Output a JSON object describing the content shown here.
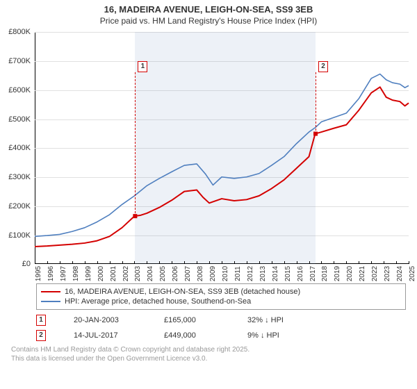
{
  "title": {
    "line1": "16, MADEIRA AVENUE, LEIGH-ON-SEA, SS9 3EB",
    "line2": "Price paid vs. HM Land Registry's House Price Index (HPI)"
  },
  "chart": {
    "type": "line",
    "background_color": "#ffffff",
    "grid_color": "#e0e0e0",
    "axis_color": "#000000",
    "x": {
      "min": 1995,
      "max": 2025,
      "ticks": [
        1995,
        1996,
        1997,
        1998,
        1999,
        2000,
        2001,
        2002,
        2003,
        2004,
        2005,
        2006,
        2007,
        2008,
        2009,
        2010,
        2011,
        2012,
        2013,
        2014,
        2015,
        2016,
        2017,
        2018,
        2019,
        2020,
        2021,
        2022,
        2023,
        2024,
        2025
      ]
    },
    "y": {
      "min": 0,
      "max": 800000,
      "tick_step": 100000,
      "ticks": [
        0,
        100000,
        200000,
        300000,
        400000,
        500000,
        600000,
        700000,
        800000
      ],
      "labels": [
        "£0",
        "£100K",
        "£200K",
        "£300K",
        "£400K",
        "£500K",
        "£600K",
        "£700K",
        "£800K"
      ]
    },
    "shaded_region": {
      "x_start": 2003.05,
      "x_end": 2017.53,
      "color": "rgba(105,140,190,0.12)"
    },
    "series": [
      {
        "id": "price_paid",
        "label": "16, MADEIRA AVENUE, LEIGH-ON-SEA, SS9 3EB (detached house)",
        "color": "#d40000",
        "line_width": 2,
        "points": [
          [
            1995.0,
            60000
          ],
          [
            1996.0,
            62000
          ],
          [
            1997.0,
            65000
          ],
          [
            1998.0,
            68000
          ],
          [
            1999.0,
            72000
          ],
          [
            2000.0,
            80000
          ],
          [
            2001.0,
            95000
          ],
          [
            2002.0,
            125000
          ],
          [
            2003.0,
            165000
          ],
          [
            2003.5,
            168000
          ],
          [
            2004.0,
            175000
          ],
          [
            2005.0,
            195000
          ],
          [
            2006.0,
            220000
          ],
          [
            2007.0,
            250000
          ],
          [
            2008.0,
            255000
          ],
          [
            2008.5,
            230000
          ],
          [
            2009.0,
            210000
          ],
          [
            2010.0,
            225000
          ],
          [
            2011.0,
            218000
          ],
          [
            2012.0,
            222000
          ],
          [
            2013.0,
            235000
          ],
          [
            2014.0,
            260000
          ],
          [
            2015.0,
            290000
          ],
          [
            2016.0,
            330000
          ],
          [
            2017.0,
            370000
          ],
          [
            2017.5,
            449000
          ],
          [
            2018.0,
            455000
          ],
          [
            2019.0,
            468000
          ],
          [
            2020.0,
            480000
          ],
          [
            2021.0,
            530000
          ],
          [
            2022.0,
            590000
          ],
          [
            2022.7,
            610000
          ],
          [
            2023.2,
            575000
          ],
          [
            2023.7,
            565000
          ],
          [
            2024.3,
            560000
          ],
          [
            2024.7,
            545000
          ],
          [
            2025.0,
            555000
          ]
        ]
      },
      {
        "id": "hpi",
        "label": "HPI: Average price, detached house, Southend-on-Sea",
        "color": "#4f7fbf",
        "line_width": 1.6,
        "points": [
          [
            1995.0,
            95000
          ],
          [
            1996.0,
            98000
          ],
          [
            1997.0,
            102000
          ],
          [
            1998.0,
            112000
          ],
          [
            1999.0,
            125000
          ],
          [
            2000.0,
            145000
          ],
          [
            2001.0,
            170000
          ],
          [
            2002.0,
            205000
          ],
          [
            2003.0,
            235000
          ],
          [
            2004.0,
            270000
          ],
          [
            2005.0,
            295000
          ],
          [
            2006.0,
            318000
          ],
          [
            2007.0,
            340000
          ],
          [
            2008.0,
            345000
          ],
          [
            2008.7,
            310000
          ],
          [
            2009.3,
            272000
          ],
          [
            2010.0,
            300000
          ],
          [
            2011.0,
            295000
          ],
          [
            2012.0,
            300000
          ],
          [
            2013.0,
            312000
          ],
          [
            2014.0,
            340000
          ],
          [
            2015.0,
            370000
          ],
          [
            2016.0,
            415000
          ],
          [
            2017.0,
            455000
          ],
          [
            2017.5,
            470000
          ],
          [
            2018.0,
            490000
          ],
          [
            2019.0,
            505000
          ],
          [
            2020.0,
            520000
          ],
          [
            2021.0,
            570000
          ],
          [
            2022.0,
            640000
          ],
          [
            2022.7,
            655000
          ],
          [
            2023.2,
            635000
          ],
          [
            2023.7,
            625000
          ],
          [
            2024.3,
            620000
          ],
          [
            2024.7,
            608000
          ],
          [
            2025.0,
            615000
          ]
        ]
      }
    ],
    "callouts": [
      {
        "num": "1",
        "x": 2003.05,
        "y_box": 700000,
        "y_point": 165000,
        "color": "#d40000"
      },
      {
        "num": "2",
        "x": 2017.53,
        "y_box": 700000,
        "y_point": 449000,
        "color": "#d40000"
      }
    ]
  },
  "legend": {
    "items": [
      {
        "series_id": "price_paid"
      },
      {
        "series_id": "hpi"
      }
    ]
  },
  "annotations": [
    {
      "num": "1",
      "color": "#d40000",
      "date": "20-JAN-2003",
      "price": "£165,000",
      "delta": "32% ↓ HPI"
    },
    {
      "num": "2",
      "color": "#d40000",
      "date": "14-JUL-2017",
      "price": "£449,000",
      "delta": "9% ↓ HPI"
    }
  ],
  "footer": {
    "line1": "Contains HM Land Registry data © Crown copyright and database right 2025.",
    "line2": "This data is licensed under the Open Government Licence v3.0."
  }
}
